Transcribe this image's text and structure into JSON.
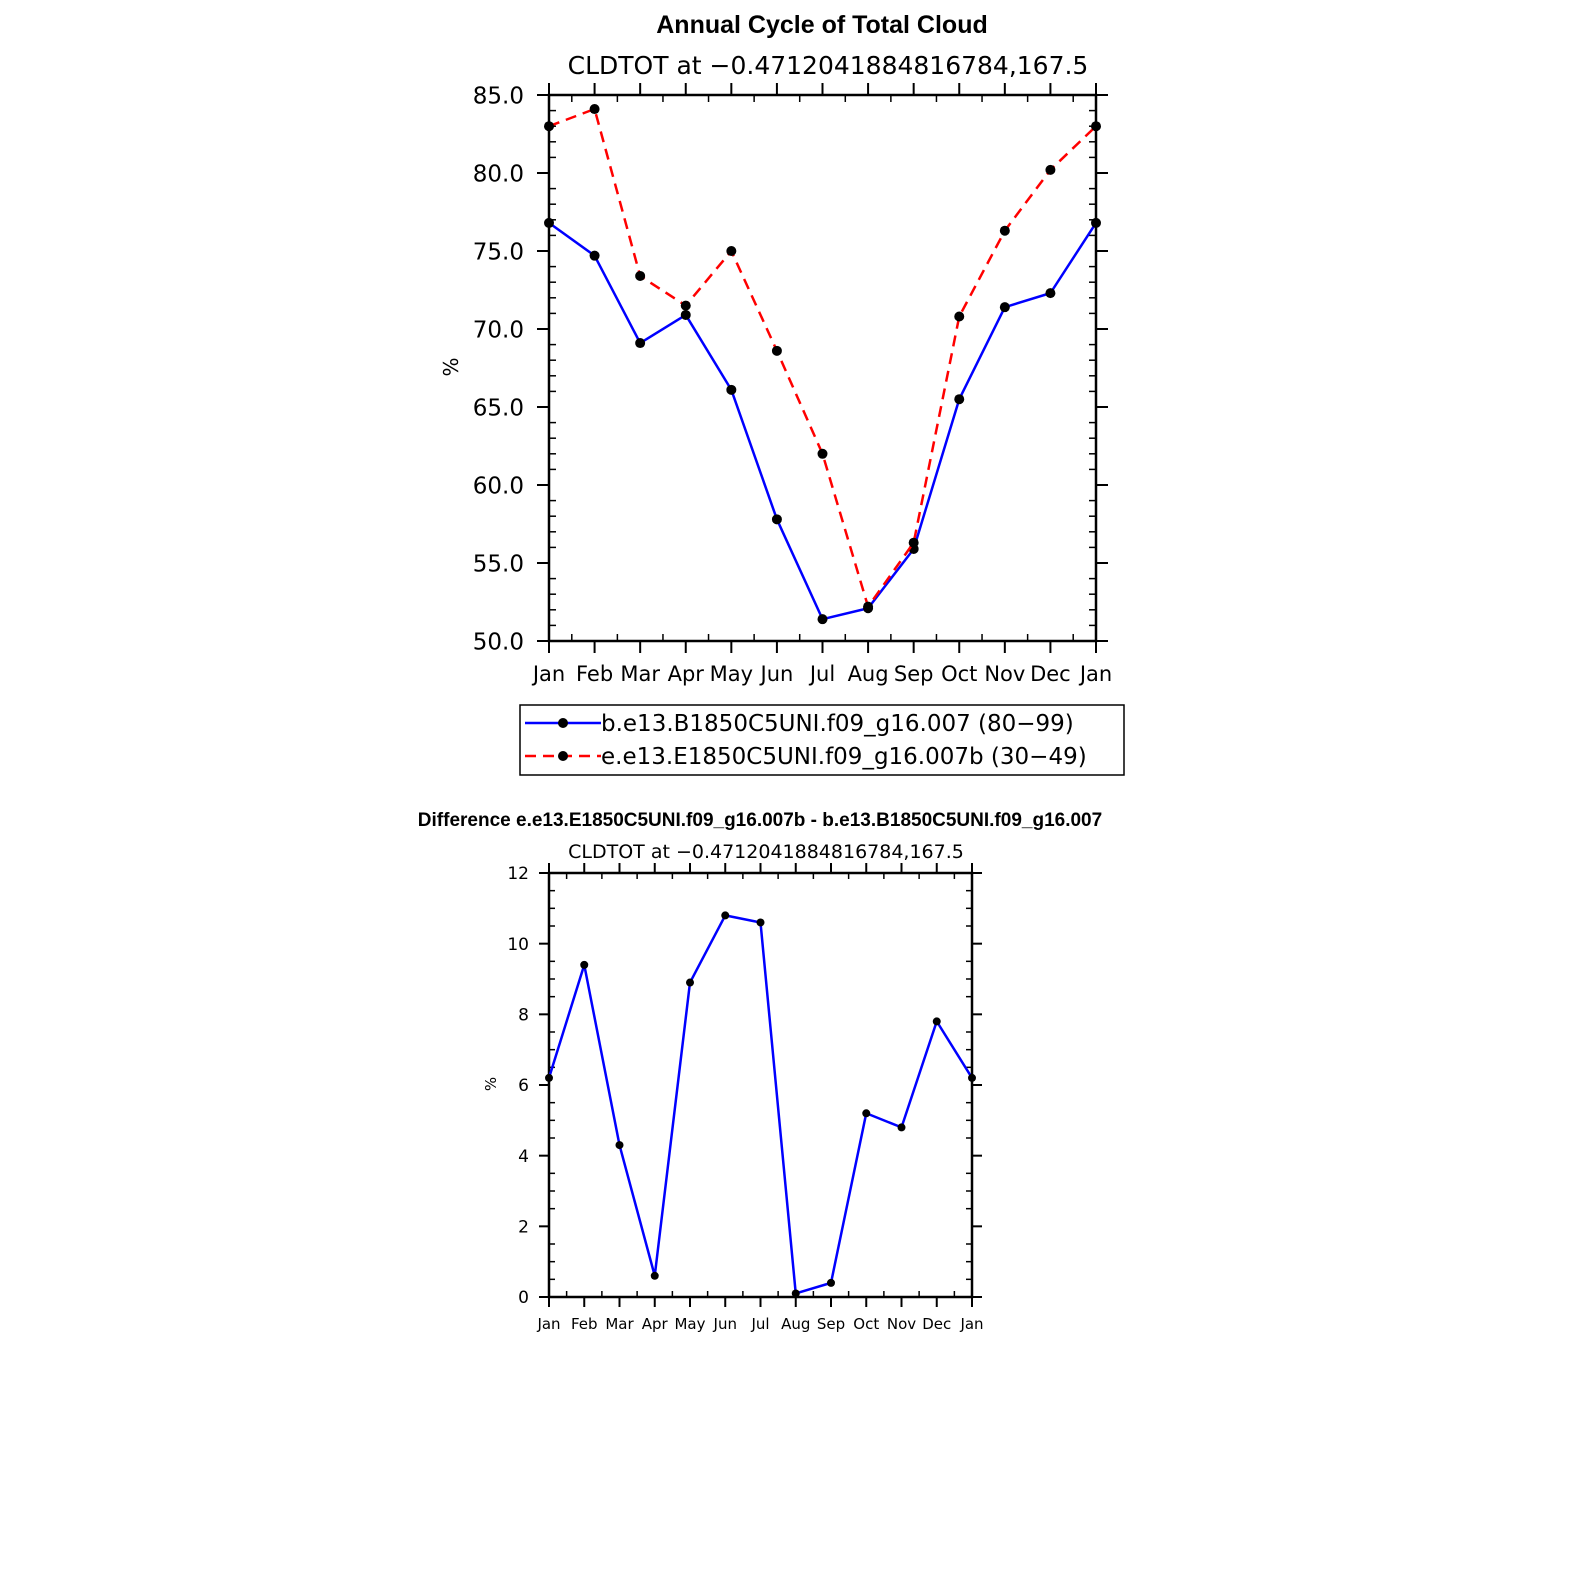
{
  "chart_data": [
    {
      "type": "line",
      "title": "Annual Cycle of Total Cloud",
      "subtitle": "CLDTOT at −0.4712041884816784,167.5",
      "ylabel": "%",
      "xlabel": "",
      "categories": [
        "Jan",
        "Feb",
        "Mar",
        "Apr",
        "May",
        "Jun",
        "Jul",
        "Aug",
        "Sep",
        "Oct",
        "Nov",
        "Dec",
        "Jan"
      ],
      "ylim": [
        50,
        85
      ],
      "yticks": [
        50,
        55,
        60,
        65,
        70,
        75,
        80,
        85
      ],
      "ytick_labels": [
        "50.0",
        "55.0",
        "60.0",
        "65.0",
        "70.0",
        "75.0",
        "80.0",
        "85.0"
      ],
      "grid": false,
      "legend_position": "bottom",
      "series": [
        {
          "name": "b.e13.B1850C5UNI.f09_g16.007 (80−99)",
          "color": "#0000ff",
          "dash": "solid",
          "values": [
            76.8,
            74.7,
            69.1,
            70.9,
            66.1,
            57.8,
            51.4,
            52.1,
            55.9,
            65.5,
            71.4,
            72.3,
            76.8
          ]
        },
        {
          "name": "e.e13.E1850C5UNI.f09_g16.007b (30−49)",
          "color": "#ff0000",
          "dash": "dashed",
          "values": [
            83.0,
            84.1,
            73.4,
            71.5,
            75.0,
            68.6,
            62.0,
            52.2,
            56.3,
            70.8,
            76.3,
            80.2,
            83.0
          ]
        }
      ]
    },
    {
      "type": "line",
      "title": "Difference e.e13.E1850C5UNI.f09_g16.007b - b.e13.B1850C5UNI.f09_g16.007",
      "subtitle": "CLDTOT at −0.4712041884816784,167.5",
      "ylabel": "%",
      "xlabel": "",
      "categories": [
        "Jan",
        "Feb",
        "Mar",
        "Apr",
        "May",
        "Jun",
        "Jul",
        "Aug",
        "Sep",
        "Oct",
        "Nov",
        "Dec",
        "Jan"
      ],
      "ylim": [
        0,
        12
      ],
      "yticks": [
        0,
        2,
        4,
        6,
        8,
        10,
        12
      ],
      "ytick_labels": [
        "0",
        "2",
        "4",
        "6",
        "8",
        "10",
        "12"
      ],
      "grid": false,
      "series": [
        {
          "name": "difference",
          "color": "#0000ff",
          "dash": "solid",
          "values": [
            6.2,
            9.4,
            4.3,
            0.6,
            8.9,
            10.8,
            10.6,
            0.1,
            0.4,
            5.2,
            4.8,
            7.8,
            6.2
          ]
        }
      ]
    }
  ]
}
